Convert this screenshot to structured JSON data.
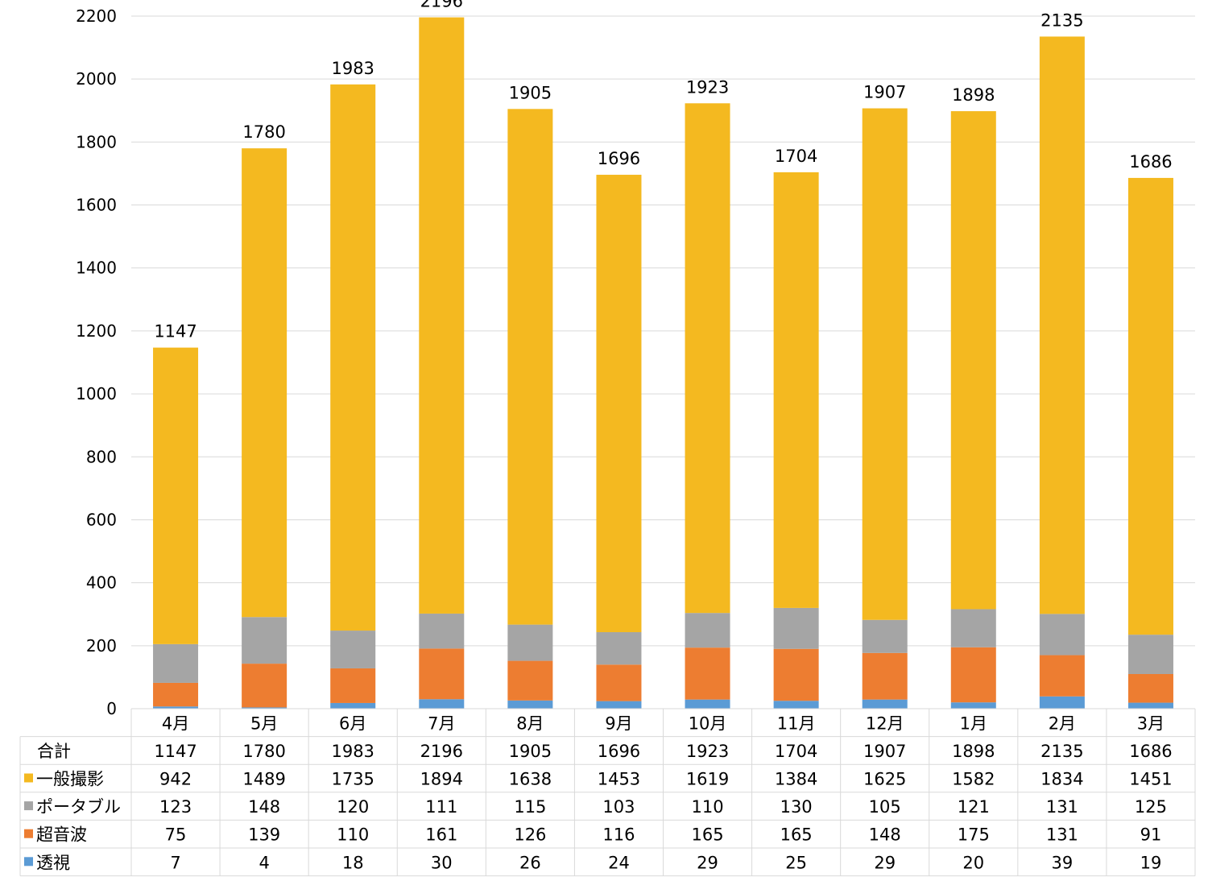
{
  "chart_data": {
    "type": "bar",
    "stacked": true,
    "categories": [
      "4月",
      "5月",
      "6月",
      "7月",
      "8月",
      "9月",
      "10月",
      "11月",
      "12月",
      "1月",
      "2月",
      "3月"
    ],
    "series": [
      {
        "name": "透視",
        "color": "#5b9bd5",
        "values": [
          7,
          4,
          18,
          30,
          26,
          24,
          29,
          25,
          29,
          20,
          39,
          19
        ]
      },
      {
        "name": "超音波",
        "color": "#ed7d31",
        "values": [
          75,
          139,
          110,
          161,
          126,
          116,
          165,
          165,
          148,
          175,
          131,
          91
        ]
      },
      {
        "name": "ポータブル",
        "color": "#a5a5a5",
        "values": [
          123,
          148,
          120,
          111,
          115,
          103,
          110,
          130,
          105,
          121,
          131,
          125
        ]
      },
      {
        "name": "一般撮影",
        "color": "#f4b920",
        "values": [
          942,
          1489,
          1735,
          1894,
          1638,
          1453,
          1619,
          1384,
          1625,
          1582,
          1834,
          1451
        ]
      }
    ],
    "totals_label": "合計",
    "totals": [
      1147,
      1780,
      1983,
      2196,
      1905,
      1696,
      1923,
      1704,
      1907,
      1898,
      2135,
      1686
    ],
    "ylim": [
      0,
      2200
    ],
    "yticks": [
      0,
      200,
      400,
      600,
      800,
      1000,
      1200,
      1400,
      1600,
      1800,
      2000,
      2200
    ],
    "table_row_order": [
      "一般撮影",
      "ポータブル",
      "超音波",
      "透視"
    ],
    "grid": true,
    "legend": "data-table"
  }
}
